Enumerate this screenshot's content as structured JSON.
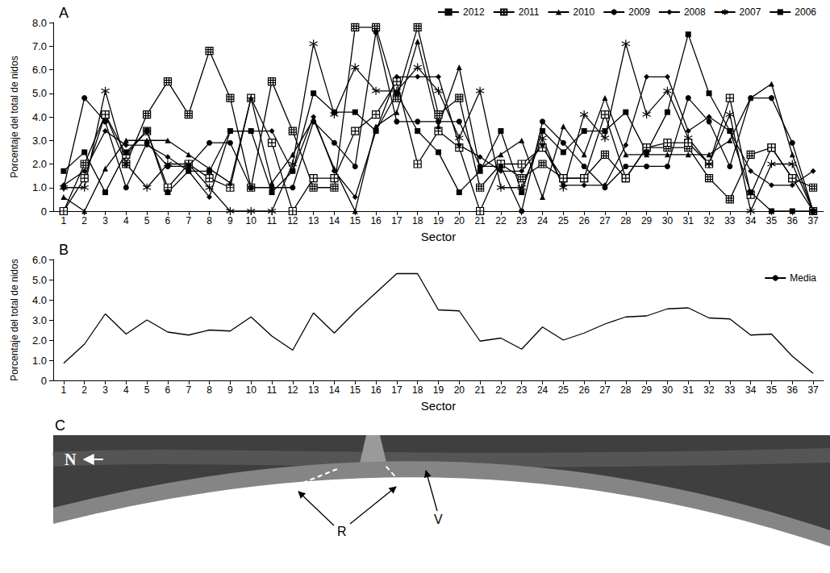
{
  "chart_data": [
    {
      "type": "line",
      "title": "A",
      "x_label": "Sector",
      "y_label": "Porcentaje del total de nidos",
      "categories": [
        "1",
        "2",
        "3",
        "4",
        "5",
        "6",
        "7",
        "8",
        "9",
        "10",
        "11",
        "12",
        "13",
        "14",
        "15",
        "16",
        "17",
        "18",
        "19",
        "20",
        "21",
        "22",
        "23",
        "24",
        "25",
        "26",
        "27",
        "28",
        "29",
        "30",
        "31",
        "32",
        "33",
        "34",
        "35",
        "36",
        "37"
      ],
      "series": [
        {
          "name": "2012",
          "color": "#000000",
          "marker": "square_grid",
          "line_style": "solid",
          "values": [
            0,
            2.0,
            4.1,
            2.0,
            4.1,
            5.5,
            4.1,
            6.8,
            4.8,
            1.0,
            5.5,
            3.4,
            1.0,
            1.0,
            7.8,
            7.8,
            4.8,
            7.8,
            4.1,
            4.8,
            1.0,
            2.0,
            1.4,
            2.0,
            1.4,
            1.4,
            2.4,
            1.4,
            2.7,
            2.7,
            2.7,
            1.4,
            0.5,
            2.4,
            2.7,
            1.4,
            1.0
          ]
        },
        {
          "name": "2011",
          "color": "#000000",
          "marker": "square_cross",
          "line_style": "solid",
          "values": [
            0,
            1.4,
            4.1,
            2.4,
            3.4,
            1.0,
            2.0,
            1.4,
            1.0,
            4.8,
            2.9,
            0,
            1.4,
            1.4,
            3.4,
            4.1,
            5.5,
            2.0,
            3.4,
            2.7,
            0,
            2.0,
            2.0,
            2.7,
            1.4,
            1.4,
            4.1,
            1.4,
            2.7,
            2.9,
            2.9,
            2.0,
            4.8,
            0.7,
            2.7,
            1.4,
            0
          ]
        },
        {
          "name": "2010",
          "color": "#000000",
          "marker": "triangle",
          "line_style": "solid",
          "values": [
            0.6,
            0,
            1.8,
            3.0,
            3.0,
            3.0,
            2.4,
            1.8,
            1.2,
            4.8,
            1.2,
            2.4,
            3.9,
            1.8,
            0,
            3.6,
            4.2,
            7.2,
            3.6,
            6.1,
            1.8,
            2.4,
            3.0,
            0.6,
            3.6,
            2.4,
            4.8,
            2.4,
            2.4,
            2.4,
            2.4,
            2.4,
            3.0,
            4.8,
            5.4,
            2.4,
            0
          ]
        },
        {
          "name": "2009",
          "color": "#000000",
          "marker": "circle",
          "line_style": "solid",
          "values": [
            1.0,
            4.8,
            3.8,
            1.0,
            2.9,
            1.9,
            1.9,
            2.9,
            2.9,
            1.0,
            1.0,
            1.0,
            3.8,
            2.9,
            1.9,
            7.6,
            3.8,
            3.8,
            3.8,
            3.8,
            1.9,
            1.9,
            0,
            3.8,
            2.9,
            1.9,
            1.0,
            1.9,
            1.9,
            1.9,
            4.8,
            3.8,
            1.9,
            4.8,
            4.8,
            2.9,
            0
          ]
        },
        {
          "name": "2008",
          "color": "#000000",
          "marker": "diamond",
          "line_style": "solid",
          "values": [
            1.1,
            1.7,
            3.4,
            2.8,
            2.8,
            2.3,
            1.7,
            0.6,
            3.4,
            3.4,
            3.4,
            1.7,
            4.0,
            1.7,
            0.6,
            3.4,
            5.7,
            5.7,
            5.7,
            2.8,
            2.3,
            1.7,
            1.7,
            2.8,
            1.1,
            1.1,
            1.1,
            2.8,
            5.7,
            5.7,
            3.4,
            4.0,
            3.4,
            1.7,
            1.1,
            1.1,
            1.7
          ]
        },
        {
          "name": "2007",
          "color": "#000000",
          "marker": "star",
          "line_style": "solid",
          "values": [
            1.0,
            1.0,
            5.1,
            2.0,
            1.0,
            2.0,
            2.0,
            1.0,
            0,
            0,
            0,
            2.0,
            7.1,
            4.1,
            6.1,
            5.1,
            5.1,
            6.1,
            5.1,
            3.1,
            5.1,
            1.0,
            1.0,
            3.1,
            1.0,
            4.1,
            3.1,
            7.1,
            4.1,
            5.1,
            3.1,
            2.0,
            4.1,
            0,
            2.0,
            2.0,
            0
          ]
        },
        {
          "name": "2006",
          "color": "#000000",
          "marker": "square",
          "line_style": "solid",
          "values": [
            1.7,
            2.5,
            0.8,
            2.5,
            3.4,
            0.8,
            1.7,
            1.7,
            3.4,
            3.4,
            0.8,
            1.7,
            5.0,
            4.2,
            4.2,
            3.4,
            5.0,
            3.4,
            2.5,
            0.8,
            1.7,
            3.4,
            0.8,
            3.4,
            2.5,
            3.4,
            3.4,
            4.2,
            2.5,
            4.2,
            7.5,
            5.0,
            3.4,
            0.8,
            0,
            0,
            0
          ]
        }
      ],
      "ylim": [
        0,
        8
      ],
      "yticks": [
        0,
        {
          "value": 1,
          "label": "1.0"
        },
        {
          "value": 2,
          "label": "2.0"
        },
        {
          "value": 3,
          "label": "3.0"
        },
        {
          "value": 4,
          "label": "4.0"
        },
        {
          "value": 5,
          "label": "5.0"
        },
        {
          "value": 6,
          "label": "6.0"
        },
        {
          "value": 7,
          "label": "7.0"
        },
        {
          "value": 8,
          "label": "8.0"
        }
      ],
      "grid": false,
      "legend": "upper right"
    },
    {
      "type": "line",
      "title": "B",
      "x_label": "Sector",
      "y_label": "Porcentaje del total de nidos",
      "categories": [
        "1",
        "2",
        "3",
        "4",
        "5",
        "6",
        "7",
        "8",
        "9",
        "10",
        "11",
        "12",
        "13",
        "14",
        "15",
        "16",
        "17",
        "18",
        "19",
        "20",
        "21",
        "22",
        "23",
        "24",
        "25",
        "26",
        "27",
        "28",
        "29",
        "30",
        "31",
        "32",
        "33",
        "34",
        "35",
        "36",
        "37"
      ],
      "series": [
        {
          "name": "Media",
          "color": "#000000",
          "marker": "none",
          "line_style": "solid",
          "values": [
            0.85,
            1.8,
            3.3,
            2.3,
            3.0,
            2.4,
            2.25,
            2.5,
            2.45,
            3.15,
            2.2,
            1.5,
            3.35,
            2.35,
            3.4,
            4.35,
            5.3,
            5.3,
            3.5,
            3.45,
            1.95,
            2.1,
            1.55,
            2.65,
            2.0,
            2.35,
            2.8,
            3.15,
            3.2,
            3.55,
            3.6,
            3.1,
            3.05,
            2.25,
            2.3,
            1.2,
            0.35
          ]
        }
      ],
      "ylim": [
        0,
        6
      ],
      "yticks": [
        0,
        {
          "value": 1,
          "label": "1.0"
        },
        {
          "value": 2,
          "label": "2.0"
        },
        {
          "value": 3,
          "label": "3.0"
        },
        {
          "value": 4,
          "label": "4.0"
        },
        {
          "value": 5,
          "label": "5.0"
        },
        {
          "value": 6,
          "label": "6.0"
        }
      ],
      "grid": false,
      "legend": "upper right"
    }
  ],
  "photo": {
    "title": "C",
    "labels": [
      "N",
      "R",
      "V"
    ]
  }
}
